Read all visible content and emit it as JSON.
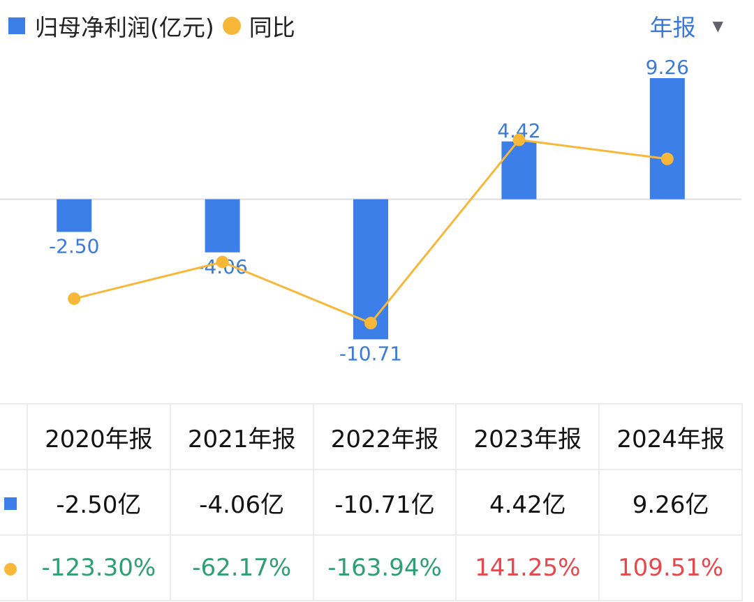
{
  "legend": {
    "bar_label": "归母净利润(亿元)",
    "line_label": "同比"
  },
  "period_selector": {
    "label": "年报",
    "arrow": "▼"
  },
  "colors": {
    "bar": "#3c7fe9",
    "line": "#f7b83a",
    "positive": "#e5484d",
    "negative": "#2e9e74",
    "accent_text": "#3a7ad8"
  },
  "chart_data": {
    "type": "bar",
    "categories": [
      "2020年报",
      "2021年报",
      "2022年报",
      "2023年报",
      "2024年报"
    ],
    "series": [
      {
        "name": "归母净利润(亿元)",
        "type": "bar",
        "values": [
          -2.5,
          -4.06,
          -10.71,
          4.42,
          9.26
        ],
        "labels": [
          "-2.50",
          "-4.06",
          "-10.71",
          "4.42",
          "9.26"
        ]
      },
      {
        "name": "同比",
        "type": "line",
        "values": [
          -123.3,
          -62.17,
          -163.94,
          141.25,
          109.51
        ]
      }
    ],
    "ylim": [
      -12.5,
      9.9
    ],
    "line_ylim": [
      -230,
      258
    ],
    "grid": false,
    "legend_position": "top-left"
  },
  "table": {
    "headers": [
      "2020年报",
      "2021年报",
      "2022年报",
      "2023年报",
      "2024年报"
    ],
    "profit_row": [
      "-2.50亿",
      "-4.06亿",
      "-10.71亿",
      "4.42亿",
      "9.26亿"
    ],
    "yoy_row": [
      "-123.30%",
      "-62.17%",
      "-163.94%",
      "141.25%",
      "109.51%"
    ],
    "yoy_sign": [
      "neg",
      "neg",
      "neg",
      "pos",
      "pos"
    ]
  }
}
